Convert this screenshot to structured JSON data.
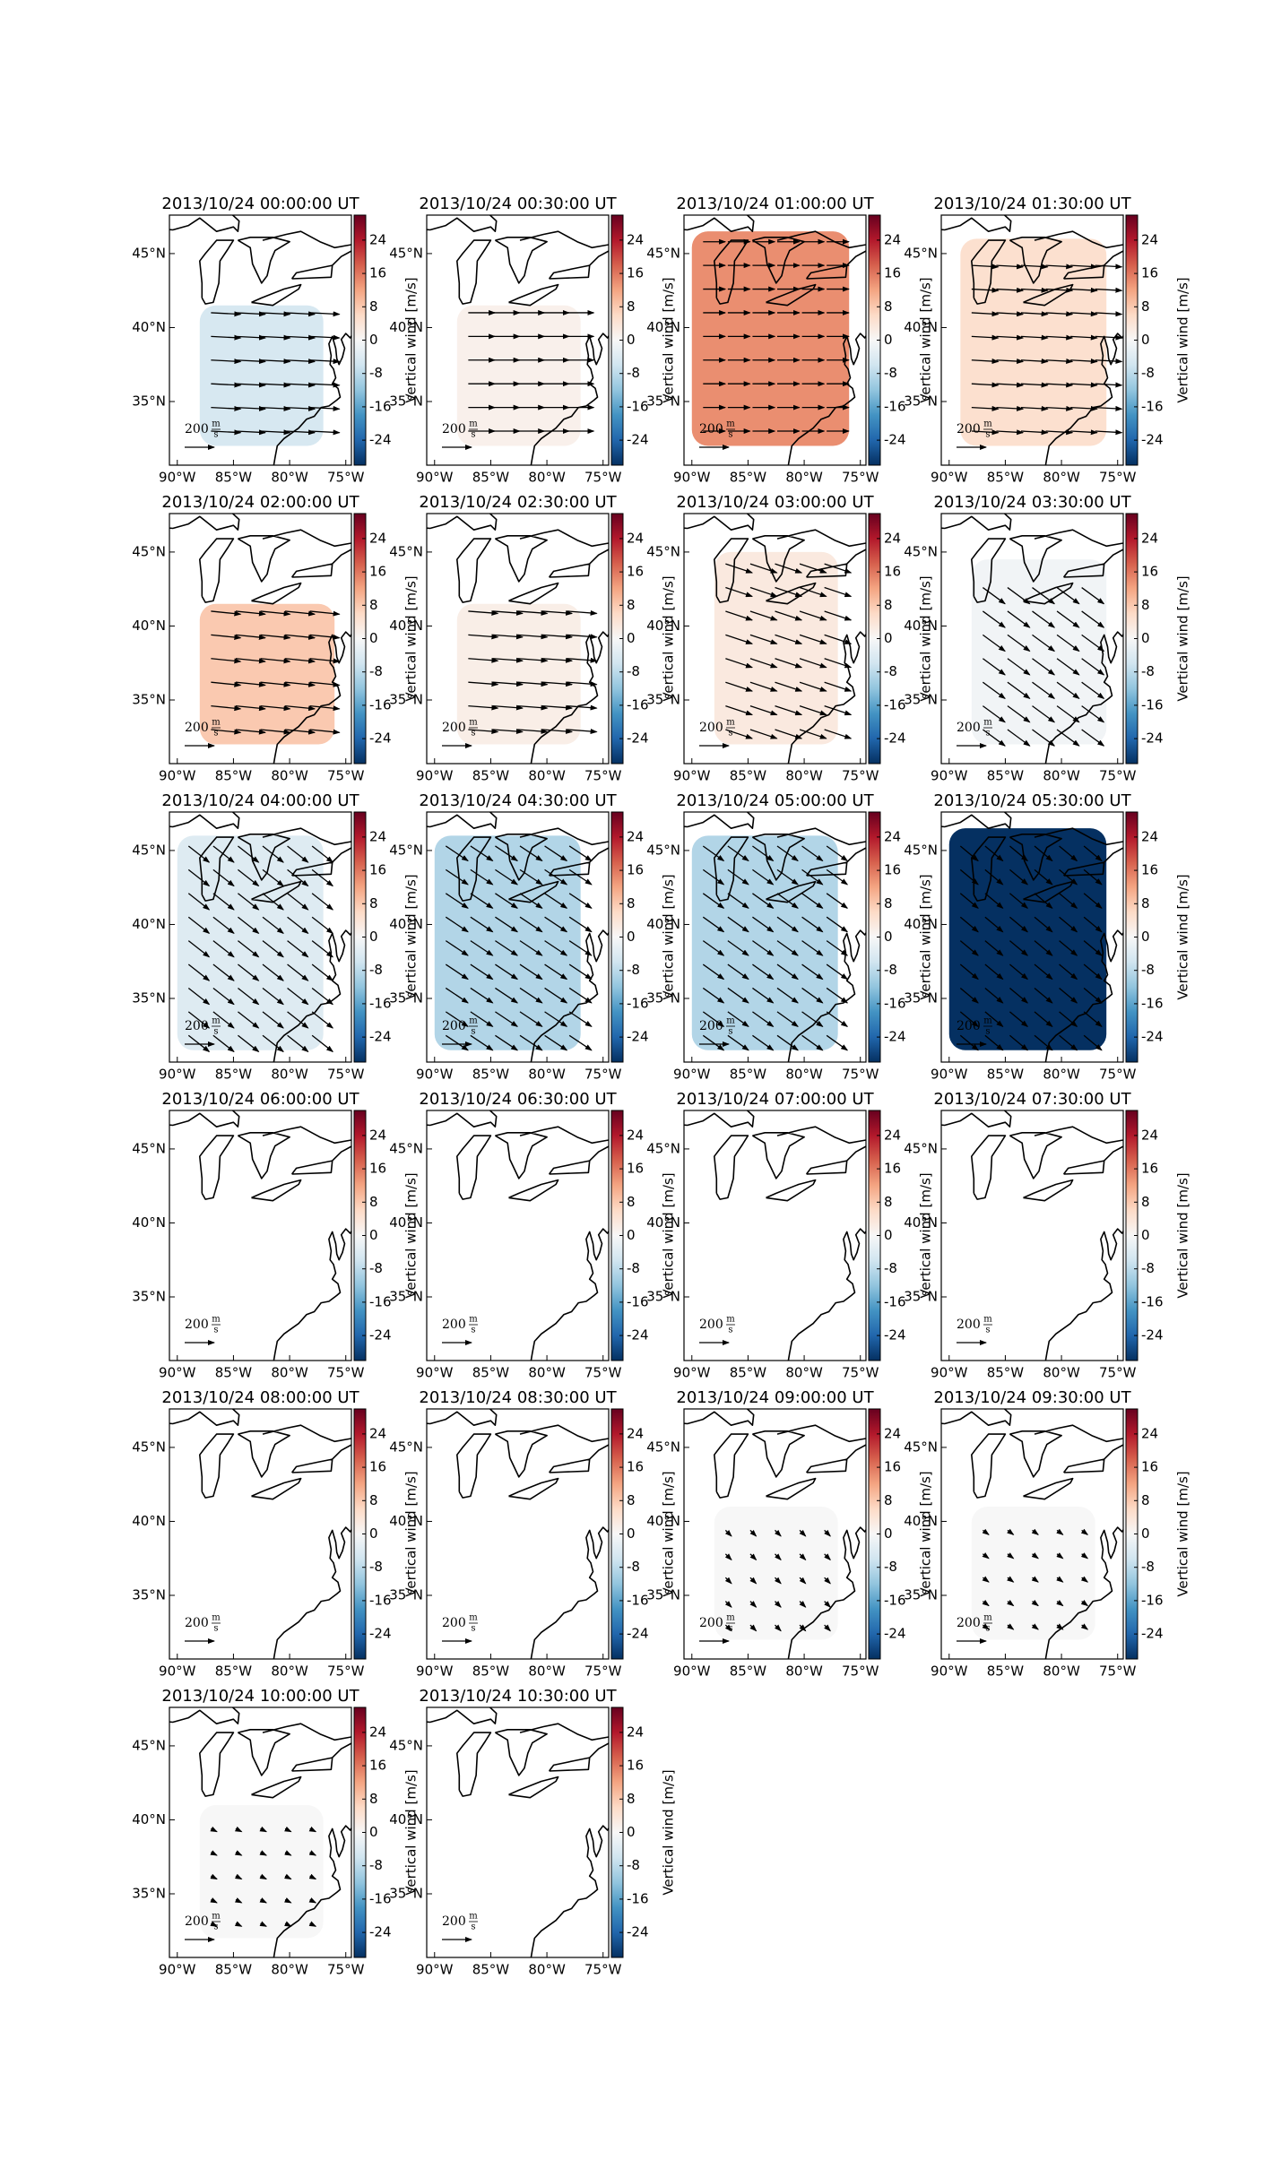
{
  "chart_data": {
    "type": "quiver_map",
    "xlim": [
      -90.7,
      -74.5
    ],
    "ylim": [
      30.7,
      47.6
    ],
    "xticks": [
      {
        "value": -90,
        "label": "90°W"
      },
      {
        "value": -85,
        "label": "85°W"
      },
      {
        "value": -80,
        "label": "80°W"
      },
      {
        "value": -75,
        "label": "75°W"
      }
    ],
    "yticks": [
      {
        "value": 35,
        "label": "35°N"
      },
      {
        "value": 40,
        "label": "40°N"
      },
      {
        "value": 45,
        "label": "45°N"
      }
    ],
    "colorbar": {
      "label": "Vertical wind [m/s]",
      "lim": [
        -30,
        30
      ],
      "ticks": [
        24,
        16,
        8,
        0,
        -8,
        -16,
        -24
      ],
      "cmap": [
        "#053061",
        "#2166ac",
        "#4393c3",
        "#92c5de",
        "#d1e5f0",
        "#f7f7f7",
        "#fddbc7",
        "#f4a582",
        "#d6604d",
        "#b2182b",
        "#67001f"
      ]
    },
    "quiver_key": {
      "value": 200,
      "unit_num": "m",
      "unit_den": "s"
    },
    "panels": [
      {
        "title": "2013/10/24 00:00:00 UT",
        "value": -5,
        "extent": [
          -88,
          -77,
          32,
          41.5
        ],
        "wind": [
          200,
          -10
        ]
      },
      {
        "title": "2013/10/24 00:30:00 UT",
        "value": 1.5,
        "extent": [
          -88,
          -77,
          32,
          41.5
        ],
        "wind": [
          180,
          0
        ]
      },
      {
        "title": "2013/10/24 01:00:00 UT",
        "value": 14,
        "extent": [
          -90,
          -76,
          32,
          46.5
        ],
        "wind": [
          150,
          0
        ]
      },
      {
        "title": "2013/10/24 01:30:00 UT",
        "value": 5,
        "extent": [
          -89,
          -76,
          32,
          46
        ],
        "wind": [
          180,
          -10
        ]
      },
      {
        "title": "2013/10/24 02:00:00 UT",
        "value": 8,
        "extent": [
          -88,
          -76,
          32,
          41.5
        ],
        "wind": [
          200,
          -20
        ]
      },
      {
        "title": "2013/10/24 02:30:00 UT",
        "value": 2,
        "extent": [
          -88,
          -77,
          32,
          41.5
        ],
        "wind": [
          200,
          -15
        ]
      },
      {
        "title": "2013/10/24 03:00:00 UT",
        "value": 3,
        "extent": [
          -88,
          -77,
          32,
          45
        ],
        "wind": [
          180,
          -60
        ]
      },
      {
        "title": "2013/10/24 03:30:00 UT",
        "value": -1,
        "extent": [
          -88,
          -76,
          32,
          44.5
        ],
        "wind": [
          150,
          -110
        ]
      },
      {
        "title": "2013/10/24 04:00:00 UT",
        "value": -4,
        "extent": [
          -90,
          -77,
          31.5,
          46
        ],
        "wind": [
          140,
          -110
        ]
      },
      {
        "title": "2013/10/24 04:30:00 UT",
        "value": -9,
        "extent": [
          -90,
          -77,
          31.5,
          46
        ],
        "wind": [
          150,
          -100
        ]
      },
      {
        "title": "2013/10/24 05:00:00 UT",
        "value": -9,
        "extent": [
          -90,
          -77,
          31.5,
          46
        ],
        "wind": [
          140,
          -100
        ]
      },
      {
        "title": "2013/10/24 05:30:00 UT",
        "value": -30,
        "extent": [
          -90,
          -76,
          31.5,
          46.5
        ],
        "wind": [
          120,
          -100
        ]
      },
      {
        "title": "2013/10/24 06:00:00 UT",
        "value": null,
        "extent": null,
        "wind": null
      },
      {
        "title": "2013/10/24 06:30:00 UT",
        "value": null,
        "extent": null,
        "wind": null
      },
      {
        "title": "2013/10/24 07:00:00 UT",
        "value": null,
        "extent": null,
        "wind": null
      },
      {
        "title": "2013/10/24 07:30:00 UT",
        "value": null,
        "extent": null,
        "wind": null
      },
      {
        "title": "2013/10/24 08:00:00 UT",
        "value": null,
        "extent": null,
        "wind": null
      },
      {
        "title": "2013/10/24 08:30:00 UT",
        "value": null,
        "extent": null,
        "wind": null
      },
      {
        "title": "2013/10/24 09:00:00 UT",
        "value": 0,
        "extent": [
          -88,
          -77,
          32,
          41
        ],
        "wind": [
          40,
          -40
        ]
      },
      {
        "title": "2013/10/24 09:30:00 UT",
        "value": 0,
        "extent": [
          -88,
          -77,
          32,
          41
        ],
        "wind": [
          40,
          -30
        ]
      },
      {
        "title": "2013/10/24 10:00:00 UT",
        "value": 0,
        "extent": [
          -88,
          -77,
          32,
          41
        ],
        "wind": [
          40,
          -20
        ]
      },
      {
        "title": "2013/10/24 10:30:00 UT",
        "value": null,
        "extent": null,
        "wind": null
      }
    ]
  }
}
